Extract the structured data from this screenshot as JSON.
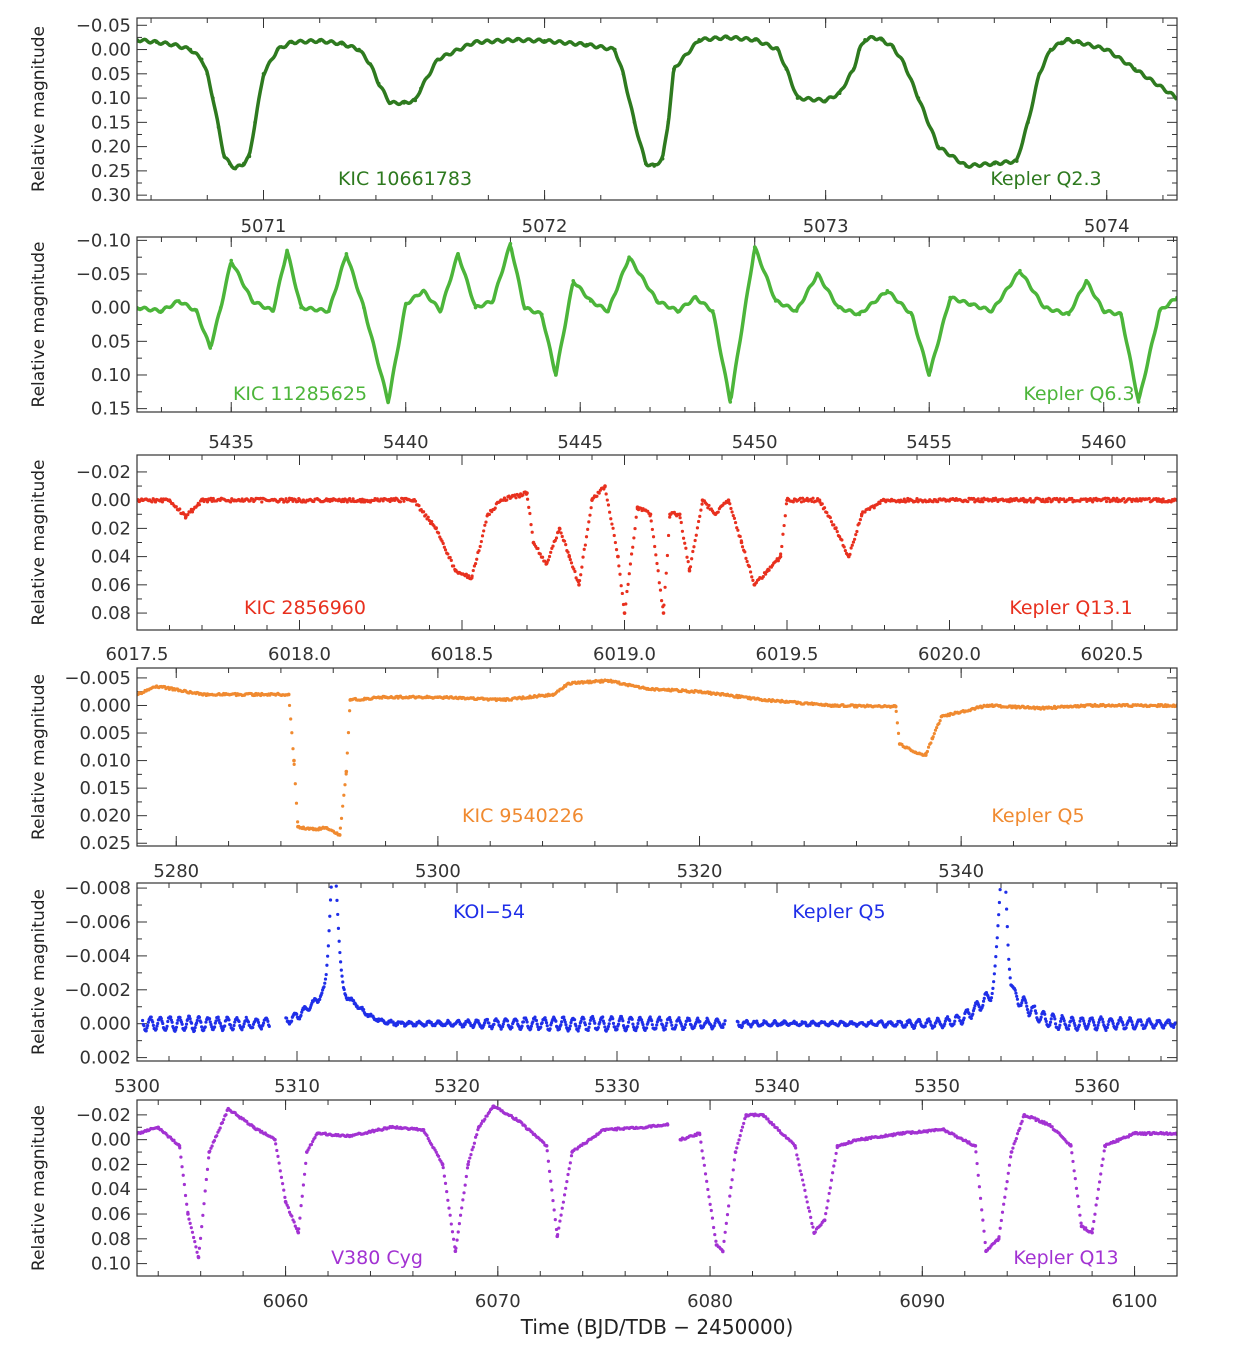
{
  "chart_data": [
    {
      "type": "line",
      "id": "kic10661783",
      "color": "#2e7a1f",
      "ylabel": "Relative magnitude",
      "xlabel": "",
      "xlim": [
        5070.55,
        5074.25
      ],
      "ylim": [
        -0.065,
        0.31
      ],
      "yticks": [
        -0.05,
        0.0,
        0.05,
        0.1,
        0.15,
        0.2,
        0.25,
        0.3
      ],
      "yticklabels": [
        "−0.05",
        "0.00",
        "0.05",
        "0.10",
        "0.15",
        "0.20",
        "0.25",
        "0.30"
      ],
      "xticks": [
        5071,
        5072,
        5073,
        5074
      ],
      "xticklabels": [
        "5071",
        "5072",
        "5073",
        "5074"
      ],
      "annotations": {
        "object": "KIC 10661783",
        "quarter": "Kepler Q2.3"
      },
      "series": [
        {
          "name": "KIC 10661783",
          "style": "line",
          "x": [
            5070.55,
            5070.62,
            5070.68,
            5070.74,
            5070.78,
            5070.8,
            5070.82,
            5070.84,
            5070.86,
            5070.88,
            5070.9,
            5070.93,
            5070.95,
            5070.97,
            5071.0,
            5071.05,
            5071.1,
            5071.2,
            5071.28,
            5071.34,
            5071.38,
            5071.41,
            5071.45,
            5071.5,
            5071.54,
            5071.56,
            5071.62,
            5071.75,
            5071.9,
            5072.0,
            5072.15,
            5072.25,
            5072.28,
            5072.32,
            5072.36,
            5072.39,
            5072.42,
            5072.44,
            5072.46,
            5072.55,
            5072.65,
            5072.75,
            5072.83,
            5072.86,
            5072.9,
            5073.0,
            5073.05,
            5073.1,
            5073.12,
            5073.14,
            5073.17,
            5073.2,
            5073.24,
            5073.28,
            5073.33,
            5073.4,
            5073.5,
            5073.6,
            5073.68,
            5073.72,
            5073.76,
            5073.8,
            5073.84,
            5073.86,
            5073.9,
            5074.0,
            5074.1,
            5074.25
          ],
          "y": [
            -0.02,
            -0.015,
            -0.01,
            0.0,
            0.02,
            0.05,
            0.1,
            0.16,
            0.22,
            0.235,
            0.245,
            0.235,
            0.22,
            0.15,
            0.05,
            0.0,
            -0.015,
            -0.018,
            -0.012,
            0.0,
            0.03,
            0.07,
            0.11,
            0.11,
            0.105,
            0.08,
            0.02,
            -0.015,
            -0.02,
            -0.018,
            -0.01,
            0.0,
            0.05,
            0.15,
            0.235,
            0.24,
            0.225,
            0.15,
            0.04,
            -0.02,
            -0.025,
            -0.02,
            0.0,
            0.04,
            0.1,
            0.105,
            0.09,
            0.04,
            0.0,
            -0.02,
            -0.025,
            -0.02,
            -0.005,
            0.03,
            0.1,
            0.2,
            0.24,
            0.235,
            0.23,
            0.15,
            0.05,
            0.0,
            -0.015,
            -0.02,
            -0.015,
            0.0,
            0.04,
            0.1
          ]
        }
      ]
    },
    {
      "type": "line",
      "id": "kic11285625",
      "color": "#4cb53a",
      "ylabel": "Relative magnitude",
      "xlabel": "",
      "xlim": [
        5432.3,
        5462.1
      ],
      "ylim": [
        -0.105,
        0.155
      ],
      "yticks": [
        -0.1,
        -0.05,
        0.0,
        0.05,
        0.1,
        0.15
      ],
      "yticklabels": [
        "−0.10",
        "−0.05",
        "0.00",
        "0.05",
        "0.10",
        "0.15"
      ],
      "xticks": [
        5435,
        5440,
        5445,
        5450,
        5455,
        5460
      ],
      "xticklabels": [
        "5435",
        "5440",
        "5445",
        "5450",
        "5455",
        "5460"
      ],
      "annotations": {
        "object": "KIC 11285625",
        "quarter": "Kepler Q6.3"
      },
      "series": [
        {
          "name": "KIC 11285625",
          "style": "line",
          "x": [
            5432.3,
            5433.0,
            5433.5,
            5434.0,
            5434.4,
            5434.7,
            5435.0,
            5435.6,
            5436.2,
            5436.6,
            5437.0,
            5437.8,
            5438.3,
            5438.8,
            5439.5,
            5440.0,
            5440.5,
            5441.0,
            5441.5,
            5442.0,
            5442.5,
            5443.0,
            5443.4,
            5443.9,
            5444.3,
            5444.8,
            5445.3,
            5445.8,
            5446.4,
            5447.2,
            5447.8,
            5448.3,
            5448.8,
            5449.3,
            5450.0,
            5450.6,
            5451.2,
            5451.8,
            5452.4,
            5453.0,
            5453.8,
            5454.5,
            5455.0,
            5455.6,
            5456.2,
            5456.8,
            5457.6,
            5458.3,
            5459.0,
            5459.5,
            5460.0,
            5460.5,
            5461.0,
            5461.6,
            5462.1
          ],
          "y": [
            0.0,
            0.005,
            -0.01,
            0.005,
            0.06,
            0.0,
            -0.07,
            -0.01,
            0.005,
            -0.085,
            0.0,
            0.005,
            -0.08,
            0.0,
            0.14,
            -0.005,
            -0.025,
            0.005,
            -0.08,
            0.0,
            -0.01,
            -0.095,
            0.0,
            0.01,
            0.1,
            -0.04,
            -0.01,
            0.005,
            -0.075,
            -0.01,
            0.005,
            -0.015,
            0.005,
            0.14,
            -0.09,
            -0.01,
            0.005,
            -0.05,
            0.0,
            0.01,
            -0.025,
            0.01,
            0.1,
            -0.015,
            -0.005,
            0.005,
            -0.055,
            0.0,
            0.01,
            -0.04,
            0.005,
            0.01,
            0.14,
            0.005,
            -0.015
          ]
        }
      ]
    },
    {
      "type": "scatter",
      "id": "kic2856960",
      "color": "#e8301e",
      "ylabel": "Relative magnitude",
      "xlabel": "",
      "xlim": [
        6017.5,
        6020.7
      ],
      "ylim": [
        -0.032,
        0.092
      ],
      "yticks": [
        -0.02,
        0.0,
        0.02,
        0.04,
        0.06,
        0.08
      ],
      "yticklabels": [
        "−0.02",
        "0.00",
        "0.02",
        "0.04",
        "0.06",
        "0.08"
      ],
      "xticks": [
        6017.5,
        6018.0,
        6018.5,
        6019.0,
        6019.5,
        6020.0,
        6020.5
      ],
      "xticklabels": [
        "6017.5",
        "6018.0",
        "6018.5",
        "6019.0",
        "6019.5",
        "6020.0",
        "6020.5"
      ],
      "annotations": {
        "object": "KIC 2856960",
        "quarter": "Kepler Q13.1"
      },
      "series": [
        {
          "name": "KIC 2856960",
          "style": "points",
          "x": [
            6017.5,
            6017.6,
            6017.65,
            6017.7,
            6017.8,
            6018.0,
            6018.2,
            6018.35,
            6018.42,
            6018.48,
            6018.53,
            6018.58,
            6018.62,
            6018.7,
            6018.72,
            6018.76,
            6018.8,
            6018.83,
            6018.86,
            6018.9,
            6018.94,
            6018.98,
            6019.0,
            6019.04,
            6019.08,
            6019.12,
            6019.14,
            6019.17,
            6019.2,
            6019.24,
            6019.28,
            6019.32,
            6019.36,
            6019.4,
            6019.44,
            6019.48,
            6019.5,
            6019.6,
            6019.65,
            6019.69,
            6019.73,
            6019.8,
            6020.0,
            6020.2,
            6020.5,
            6020.7
          ],
          "y": [
            0.0,
            0.0,
            0.012,
            0.0,
            0.0,
            0.0,
            0.0,
            0.0,
            0.02,
            0.05,
            0.055,
            0.01,
            0.0,
            -0.005,
            0.03,
            0.045,
            0.02,
            0.04,
            0.06,
            0.0,
            -0.01,
            0.04,
            0.08,
            0.005,
            0.01,
            0.08,
            0.01,
            0.01,
            0.05,
            0.0,
            0.01,
            0.0,
            0.03,
            0.06,
            0.05,
            0.04,
            0.0,
            0.0,
            0.02,
            0.04,
            0.01,
            0.0,
            0.0,
            0.0,
            0.0,
            0.0
          ]
        }
      ]
    },
    {
      "type": "scatter",
      "id": "kic9540226",
      "color": "#f08a30",
      "ylabel": "Relative magnitude",
      "xlabel": "",
      "xlim": [
        5277.0,
        5356.5
      ],
      "ylim": [
        -0.0068,
        0.0255
      ],
      "yticks": [
        -0.005,
        0.0,
        0.005,
        0.01,
        0.015,
        0.02,
        0.025
      ],
      "yticklabels": [
        "−0.005",
        "0.000",
        "0.005",
        "0.010",
        "0.015",
        "0.020",
        "0.025"
      ],
      "xticks": [
        5280,
        5300,
        5320,
        5340
      ],
      "xticklabels": [
        "5280",
        "5300",
        "5320",
        "5340"
      ],
      "annotations": {
        "object": "KIC 9540226",
        "quarter": "Kepler Q5"
      },
      "series": [
        {
          "name": "KIC 9540226",
          "style": "points",
          "x": [
            5277.0,
            5278.5,
            5282.0,
            5286.0,
            5288.6,
            5289.0,
            5289.3,
            5290.5,
            5291.5,
            5292.5,
            5293.0,
            5293.3,
            5296.0,
            5300.0,
            5305.0,
            5308.8,
            5310.0,
            5313.0,
            5316.0,
            5320.0,
            5325.0,
            5330.0,
            5335.0,
            5335.3,
            5336.5,
            5337.3,
            5337.8,
            5338.5,
            5342.0,
            5346.0,
            5350.0,
            5356.5
          ],
          "y": [
            -0.002,
            -0.0035,
            -0.002,
            -0.002,
            -0.002,
            0.01,
            0.022,
            0.0225,
            0.0222,
            0.0235,
            0.012,
            -0.001,
            -0.0015,
            -0.0015,
            -0.001,
            -0.002,
            -0.004,
            -0.0045,
            -0.003,
            -0.0025,
            -0.001,
            0.0,
            0.0002,
            0.007,
            0.0085,
            0.009,
            0.006,
            0.002,
            0.0,
            0.0005,
            0.0,
            0.0
          ]
        }
      ]
    },
    {
      "type": "scatter",
      "id": "koi54",
      "color": "#1f2ee8",
      "ylabel": "Relative magnitude",
      "xlabel": "",
      "xlim": [
        5300.0,
        5365.0
      ],
      "ylim": [
        -0.0083,
        0.0022
      ],
      "yticks": [
        -0.008,
        -0.006,
        -0.004,
        -0.002,
        0.0,
        0.002
      ],
      "yticklabels": [
        "−0.008",
        "−0.006",
        "−0.004",
        "−0.002",
        "0.000",
        "0.002"
      ],
      "xticks": [
        5300,
        5310,
        5320,
        5330,
        5340,
        5350,
        5360
      ],
      "xticklabels": [
        "5300",
        "5310",
        "5320",
        "5330",
        "5340",
        "5350",
        "5360"
      ],
      "annotations": {
        "object": "KOI−54",
        "quarter": "Kepler Q5"
      },
      "gaps": [
        [
          5308.3,
          5309.3
        ],
        [
          5336.8,
          5337.5
        ]
      ],
      "pulsation": {
        "period_days": 0.6,
        "amplitude": 0.0004
      },
      "periastron_peaks": [
        {
          "time": 5312.3,
          "peak": -0.0076,
          "width_days": 0.35
        },
        {
          "time": 5354.1,
          "peak": -0.0077,
          "width_days": 0.35
        }
      ],
      "series": [
        {
          "name": "KOI-54",
          "style": "points",
          "x": [
            5300.0,
            5365.0
          ],
          "y": [
            0.0,
            0.0
          ]
        }
      ]
    },
    {
      "type": "scatter",
      "id": "v380cyg",
      "color": "#a232d2",
      "ylabel": "Relative magnitude",
      "xlabel": "Time   (BJD/TDB − 2450000)",
      "xlim": [
        6053.0,
        6102.0
      ],
      "ylim": [
        -0.032,
        0.11
      ],
      "yticks": [
        -0.02,
        0.0,
        0.02,
        0.04,
        0.06,
        0.08,
        0.1
      ],
      "yticklabels": [
        "−0.02",
        "0.00",
        "0.02",
        "0.04",
        "0.06",
        "0.08",
        "0.10"
      ],
      "xticks": [
        6060,
        6070,
        6080,
        6090,
        6100
      ],
      "xticklabels": [
        "6060",
        "6070",
        "6080",
        "6090",
        "6100"
      ],
      "annotations": {
        "object": "V380 Cyg",
        "quarter": "Kepler Q13"
      },
      "gaps": [
        [
          6078.0,
          6078.6
        ]
      ],
      "series": [
        {
          "name": "V380 Cyg",
          "style": "points",
          "x": [
            6053.0,
            6054.0,
            6055.0,
            6055.4,
            6055.9,
            6056.4,
            6057.3,
            6058.5,
            6059.5,
            6060.0,
            6060.6,
            6061.0,
            6061.5,
            6063.0,
            6065.0,
            6066.5,
            6067.4,
            6068.0,
            6068.6,
            6069.1,
            6069.8,
            6071.0,
            6072.3,
            6072.8,
            6073.5,
            6075.0,
            6077.0,
            6078.0,
            6078.6,
            6079.5,
            6080.3,
            6080.6,
            6081.2,
            6081.7,
            6082.5,
            6084.0,
            6084.9,
            6085.4,
            6086.0,
            6087.0,
            6089.0,
            6091.0,
            6092.5,
            6093.0,
            6093.6,
            6094.2,
            6094.8,
            6096.0,
            6097.0,
            6097.5,
            6098.0,
            6098.6,
            6100.0,
            6102.0
          ],
          "y": [
            -0.005,
            -0.01,
            0.005,
            0.06,
            0.095,
            0.01,
            -0.025,
            -0.01,
            0.0,
            0.05,
            0.075,
            0.01,
            -0.005,
            -0.003,
            -0.01,
            -0.008,
            0.02,
            0.09,
            0.02,
            -0.01,
            -0.027,
            -0.015,
            0.005,
            0.078,
            0.01,
            -0.008,
            -0.01,
            -0.012,
            0.0,
            -0.005,
            0.085,
            0.09,
            0.01,
            -0.02,
            -0.02,
            0.005,
            0.075,
            0.065,
            0.005,
            0.0,
            -0.005,
            -0.008,
            0.005,
            0.09,
            0.08,
            0.01,
            -0.02,
            -0.012,
            0.005,
            0.07,
            0.075,
            0.005,
            -0.005,
            -0.005
          ]
        }
      ]
    }
  ]
}
